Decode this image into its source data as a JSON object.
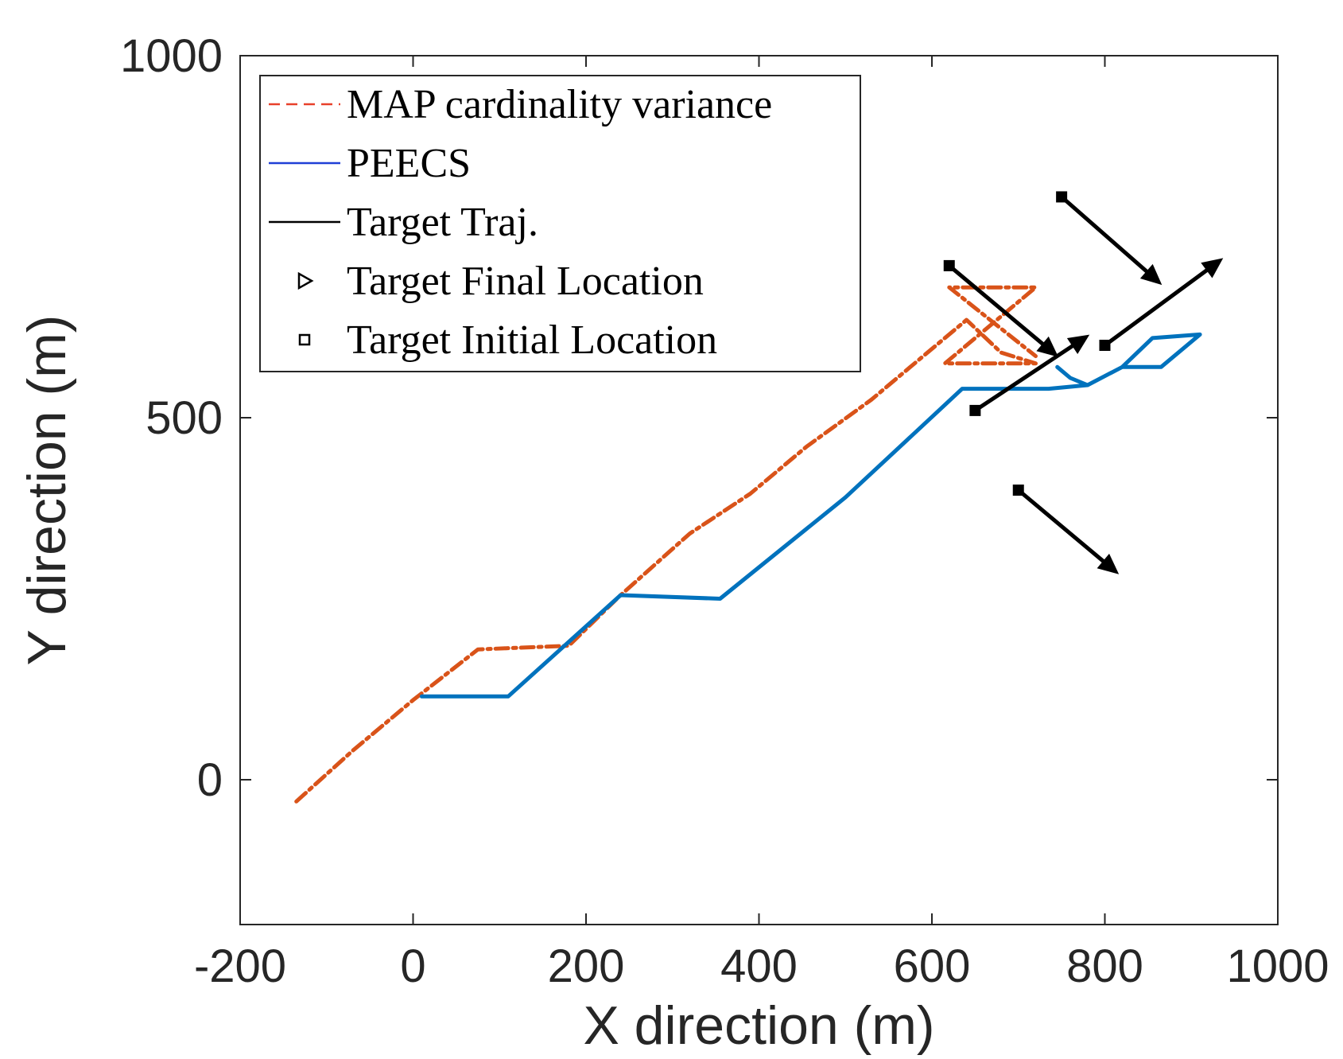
{
  "colors": {
    "map": "#D95319",
    "map_legend": "#E8402A",
    "peecs": "#0072BD",
    "peecs_legend": "#1F3FD6",
    "target": "#000000",
    "axes": "#262626"
  },
  "chart_data": {
    "type": "line",
    "title": "",
    "xlabel": "X direction (m)",
    "ylabel": "Y direction (m)",
    "xlim": [
      -200,
      1000
    ],
    "ylim": [
      -200,
      1000
    ],
    "xticks": [
      -200,
      0,
      200,
      400,
      600,
      800,
      1000
    ],
    "yticks": [
      0,
      500,
      1000
    ],
    "xtick_labels": [
      "-200",
      "0",
      "200",
      "400",
      "600",
      "800",
      "1000"
    ],
    "ytick_labels": [
      "0",
      "500",
      "1000"
    ],
    "grid": false,
    "legend_position": "top-left",
    "legend": [
      {
        "label": "MAP cardinality variance",
        "style": "dashed",
        "color_key": "map_legend"
      },
      {
        "label": "PEECS",
        "style": "solid",
        "color_key": "peecs_legend"
      },
      {
        "label": "Target Traj.",
        "style": "solid",
        "color_key": "target"
      },
      {
        "label": "Target Final Location",
        "style": "triangle-marker",
        "color_key": "target"
      },
      {
        "label": "Target Initial Location",
        "style": "square-marker",
        "color_key": "target"
      }
    ],
    "series": [
      {
        "name": "MAP cardinality variance",
        "style": "dash-dot",
        "color_key": "map",
        "points": [
          [
            -135,
            -30
          ],
          [
            -70,
            40
          ],
          [
            0,
            110
          ],
          [
            75,
            180
          ],
          [
            180,
            185
          ],
          [
            240,
            255
          ],
          [
            320,
            340
          ],
          [
            390,
            395
          ],
          [
            455,
            460
          ],
          [
            530,
            525
          ],
          [
            590,
            585
          ],
          [
            640,
            635
          ],
          [
            680,
            590
          ],
          [
            720,
            575
          ],
          [
            615,
            575
          ],
          [
            720,
            680
          ],
          [
            620,
            680
          ],
          [
            720,
            585
          ]
        ]
      },
      {
        "name": "PEECS",
        "style": "solid",
        "color_key": "peecs",
        "points": [
          [
            10,
            115
          ],
          [
            110,
            115
          ],
          [
            240,
            255
          ],
          [
            355,
            250
          ],
          [
            500,
            390
          ],
          [
            635,
            540
          ],
          [
            735,
            540
          ],
          [
            780,
            545
          ],
          [
            820,
            570
          ],
          [
            865,
            570
          ],
          [
            910,
            615
          ],
          [
            855,
            610
          ],
          [
            820,
            570
          ],
          [
            780,
            545
          ],
          [
            760,
            555
          ],
          [
            745,
            570
          ]
        ]
      }
    ],
    "targets": [
      {
        "start": [
          620,
          710
        ],
        "end": [
          735,
          595
        ]
      },
      {
        "start": [
          650,
          510
        ],
        "end": [
          770,
          605
        ]
      },
      {
        "start": [
          750,
          805
        ],
        "end": [
          855,
          695
        ]
      },
      {
        "start": [
          800,
          600
        ],
        "end": [
          925,
          710
        ]
      },
      {
        "start": [
          700,
          400
        ],
        "end": [
          805,
          295
        ]
      }
    ]
  }
}
